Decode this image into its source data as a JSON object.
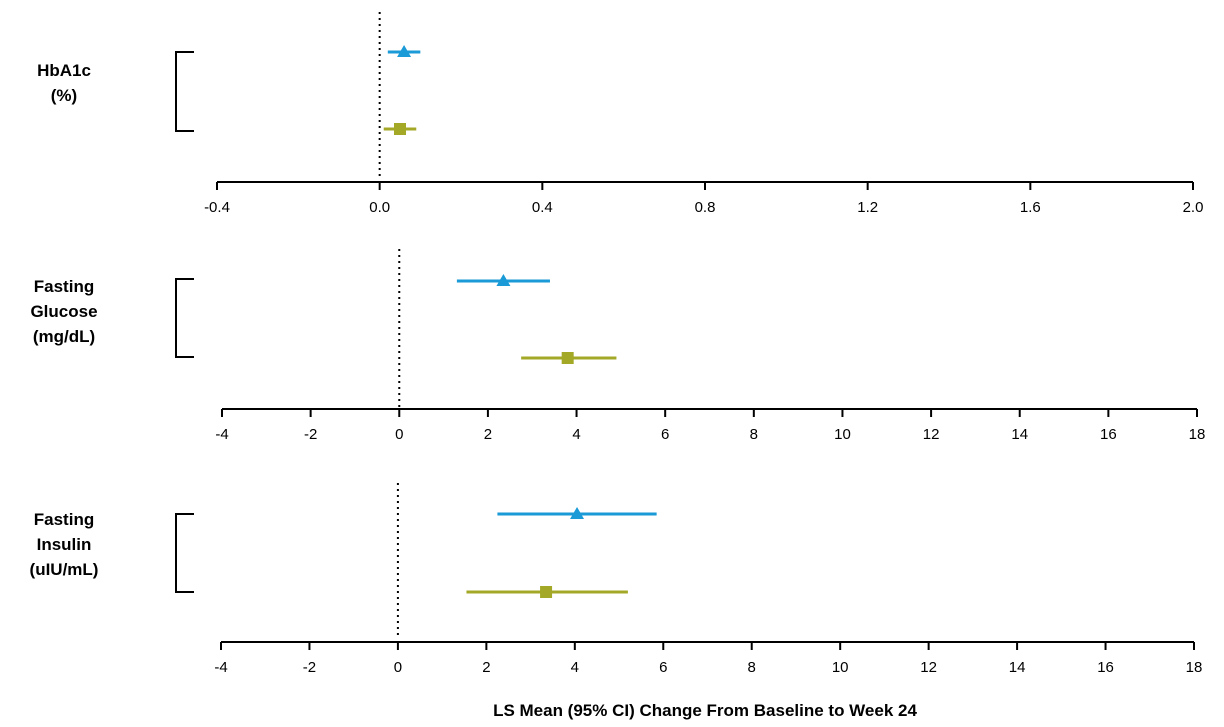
{
  "chart_data": {
    "type": "forest",
    "xlabel": "LS Mean (95% CI) Change From Baseline to Week 24",
    "colors": {
      "triangle_series": "#1a9ad6",
      "square_series": "#a3a827",
      "axis": "#000000",
      "reference_line": "#000000"
    },
    "marker_icons": {
      "triangle_series": "triangle-marker-icon",
      "square_series": "square-marker-icon"
    },
    "panels": [
      {
        "label_lines": [
          "HbA1c",
          "(%)"
        ],
        "ticks": [
          "-0.4",
          "0.0",
          "0.4",
          "0.8",
          "1.2",
          "1.6",
          "2.0"
        ],
        "xlim": [
          -0.4,
          2.0
        ],
        "reference_x": 0,
        "points": [
          {
            "marker": "triangle",
            "estimate": 0.06,
            "ci_low": 0.02,
            "ci_high": 0.1
          },
          {
            "marker": "square",
            "estimate": 0.05,
            "ci_low": 0.01,
            "ci_high": 0.09
          }
        ]
      },
      {
        "label_lines": [
          "Fasting",
          "Glucose",
          "(mg/dL)"
        ],
        "ticks": [
          "-4",
          "-2",
          "0",
          "2",
          "4",
          "6",
          "8",
          "10",
          "12",
          "14",
          "16",
          "18"
        ],
        "xlim": [
          -4,
          18
        ],
        "reference_x": 0,
        "points": [
          {
            "marker": "triangle",
            "estimate": 2.35,
            "ci_low": 1.3,
            "ci_high": 3.4
          },
          {
            "marker": "square",
            "estimate": 3.8,
            "ci_low": 2.75,
            "ci_high": 4.9
          }
        ]
      },
      {
        "label_lines": [
          "Fasting",
          "Insulin",
          "(uIU/mL)"
        ],
        "ticks": [
          "-4",
          "-2",
          "0",
          "2",
          "4",
          "6",
          "8",
          "10",
          "12",
          "14",
          "16",
          "18"
        ],
        "xlim": [
          -4,
          18
        ],
        "reference_x": 0,
        "points": [
          {
            "marker": "triangle",
            "estimate": 4.05,
            "ci_low": 2.25,
            "ci_high": 5.85
          },
          {
            "marker": "square",
            "estimate": 3.35,
            "ci_low": 1.55,
            "ci_high": 5.2
          }
        ]
      }
    ]
  }
}
